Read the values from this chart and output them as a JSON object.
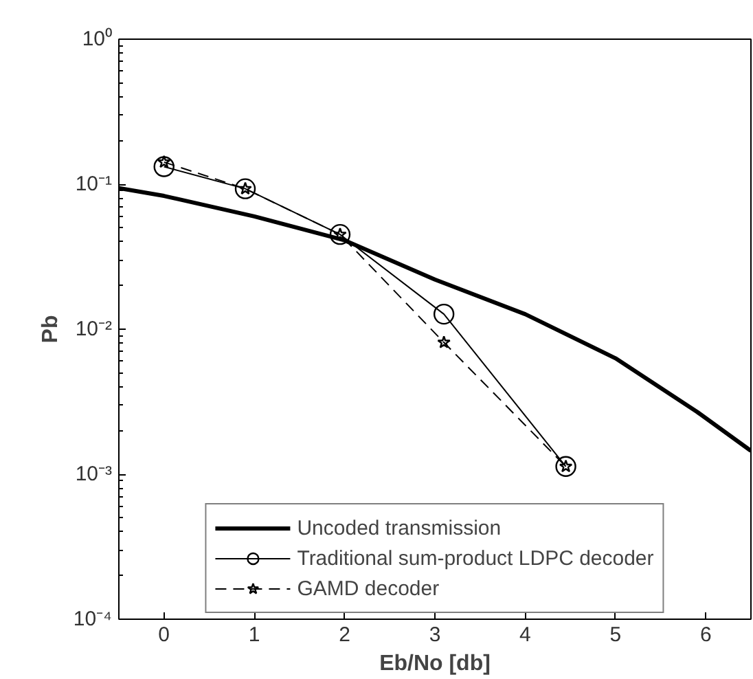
{
  "chart_data": {
    "type": "line",
    "xlabel": "Eb/No [db]",
    "ylabel": "Pb",
    "log": "y",
    "grid": false,
    "legend": "bottom",
    "xlim": [
      -0.5,
      6.5
    ],
    "xticks": [
      0,
      1,
      2,
      3,
      4,
      5,
      6
    ],
    "ylim": [
      0.0001,
      1
    ],
    "yticks": [
      {
        "value": 0.0001,
        "label": "10⁻⁴"
      },
      {
        "value": 0.001,
        "label": "10⁻³"
      },
      {
        "value": 0.01,
        "label": "10⁻²"
      },
      {
        "value": 0.1,
        "label": "10⁻¹"
      },
      {
        "value": 1,
        "label": "10⁰"
      }
    ],
    "series": [
      {
        "name": "Uncoded transmission",
        "color": "#000000",
        "marker": "none",
        "line_style": "solid",
        "x": [
          -0.5,
          0,
          1,
          2,
          3,
          4,
          5,
          5.9,
          6.5
        ],
        "values": [
          0.094,
          0.083,
          0.06,
          0.041,
          0.022,
          0.0127,
          0.0063,
          0.0027,
          0.00145
        ]
      },
      {
        "name": "Traditional sum-product LDPC decoder",
        "color": "#000000",
        "marker": "circle",
        "line_style": "solid",
        "x": [
          0,
          0.9,
          1.95,
          3.1,
          4.45
        ],
        "values": [
          0.132,
          0.093,
          0.045,
          0.0127,
          0.00113
        ]
      },
      {
        "name": "GAMD decoder",
        "color": "#000000",
        "marker": "star",
        "line_style": "dashed",
        "x": [
          0,
          0.9,
          1.95,
          3.1,
          4.45
        ],
        "values": [
          0.142,
          0.093,
          0.045,
          0.0081,
          0.00113
        ]
      }
    ]
  }
}
